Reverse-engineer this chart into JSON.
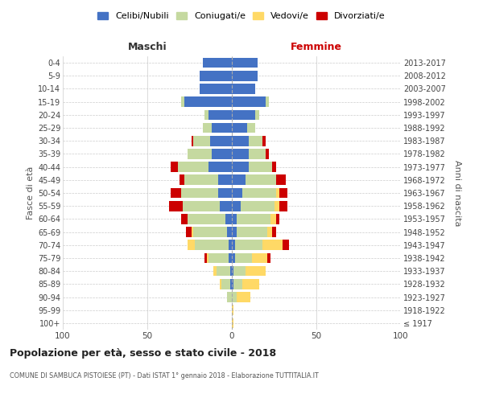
{
  "age_groups": [
    "100+",
    "95-99",
    "90-94",
    "85-89",
    "80-84",
    "75-79",
    "70-74",
    "65-69",
    "60-64",
    "55-59",
    "50-54",
    "45-49",
    "40-44",
    "35-39",
    "30-34",
    "25-29",
    "20-24",
    "15-19",
    "10-14",
    "5-9",
    "0-4"
  ],
  "birth_years": [
    "≤ 1917",
    "1918-1922",
    "1923-1927",
    "1928-1932",
    "1933-1937",
    "1938-1942",
    "1943-1947",
    "1948-1952",
    "1953-1957",
    "1958-1962",
    "1963-1967",
    "1968-1972",
    "1973-1977",
    "1978-1982",
    "1983-1987",
    "1988-1992",
    "1993-1997",
    "1998-2002",
    "2003-2007",
    "2008-2012",
    "2013-2017"
  ],
  "male": {
    "celibi": [
      0,
      0,
      0,
      1,
      1,
      2,
      2,
      3,
      4,
      7,
      8,
      8,
      14,
      12,
      13,
      12,
      14,
      28,
      19,
      19,
      17
    ],
    "coniugati": [
      0,
      0,
      3,
      5,
      8,
      12,
      20,
      20,
      22,
      22,
      22,
      20,
      18,
      14,
      10,
      5,
      2,
      2,
      0,
      0,
      0
    ],
    "vedovi": [
      0,
      0,
      0,
      1,
      2,
      1,
      4,
      1,
      0,
      0,
      0,
      0,
      0,
      0,
      0,
      0,
      0,
      0,
      0,
      0,
      0
    ],
    "divorziati": [
      0,
      0,
      0,
      0,
      0,
      1,
      0,
      3,
      4,
      8,
      6,
      3,
      4,
      0,
      1,
      0,
      0,
      0,
      0,
      0,
      0
    ]
  },
  "female": {
    "nubili": [
      0,
      0,
      0,
      1,
      1,
      2,
      2,
      3,
      3,
      5,
      6,
      8,
      10,
      10,
      10,
      9,
      14,
      20,
      14,
      15,
      15
    ],
    "coniugate": [
      0,
      0,
      3,
      5,
      7,
      10,
      16,
      18,
      20,
      20,
      20,
      18,
      14,
      10,
      8,
      5,
      2,
      2,
      0,
      0,
      0
    ],
    "vedove": [
      1,
      1,
      8,
      10,
      12,
      9,
      12,
      3,
      3,
      3,
      2,
      0,
      0,
      0,
      0,
      0,
      0,
      0,
      0,
      0,
      0
    ],
    "divorziate": [
      0,
      0,
      0,
      0,
      0,
      2,
      4,
      2,
      2,
      5,
      5,
      6,
      2,
      2,
      2,
      0,
      0,
      0,
      0,
      0,
      0
    ]
  },
  "colors": {
    "celibi": "#4472c4",
    "coniugati": "#c5d9a0",
    "vedovi": "#ffd966",
    "divorziati": "#cc0000"
  },
  "legend_labels": [
    "Celibi/Nubili",
    "Coniugati/e",
    "Vedovi/e",
    "Divorziati/e"
  ],
  "title": "Popolazione per età, sesso e stato civile - 2018",
  "subtitle": "COMUNE DI SAMBUCA PISTOIESE (PT) - Dati ISTAT 1° gennaio 2018 - Elaborazione TUTTITALIA.IT",
  "ylabel_left": "Fasce di età",
  "ylabel_right": "Anni di nascita",
  "xlabel_left": "Maschi",
  "xlabel_right": "Femmine",
  "xlim": 100,
  "background_color": "#ffffff",
  "grid_color": "#cccccc"
}
